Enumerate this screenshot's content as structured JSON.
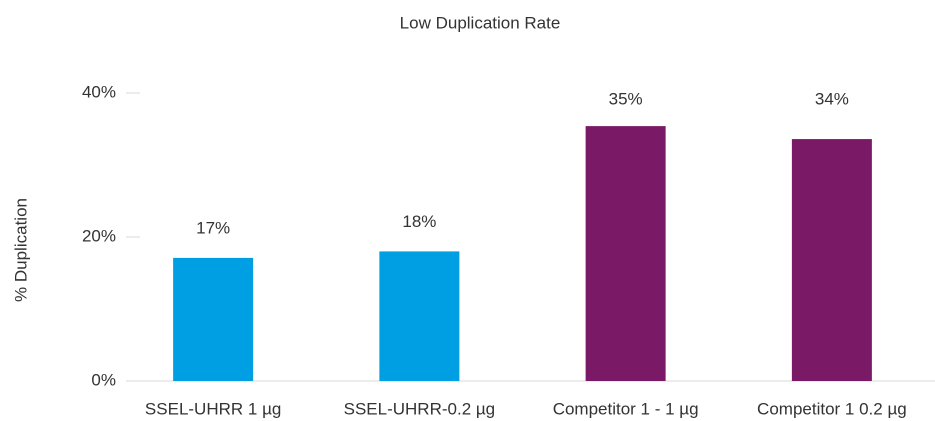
{
  "chart_data": {
    "type": "bar",
    "title": "Low Duplication Rate",
    "y_label": "% Duplication",
    "categories": [
      "SSEL-UHRR 1 µg",
      "SSEL-UHRR-0.2 µg",
      "Competitor 1 - 1 µg",
      "Competitor 1 0.2 µg"
    ],
    "values": [
      17.1,
      18.0,
      35.4,
      33.6
    ],
    "value_labels": [
      "17%",
      "18%",
      "35%",
      "34%"
    ],
    "colors": [
      "#009fe3",
      "#009fe3",
      "#7a1a67",
      "#7a1a67"
    ],
    "ylim": [
      0,
      40
    ],
    "yticks": [
      {
        "value": 0,
        "label": "0%"
      },
      {
        "value": 20,
        "label": "20%"
      },
      {
        "value": 40,
        "label": "40%"
      }
    ],
    "grid": false
  }
}
